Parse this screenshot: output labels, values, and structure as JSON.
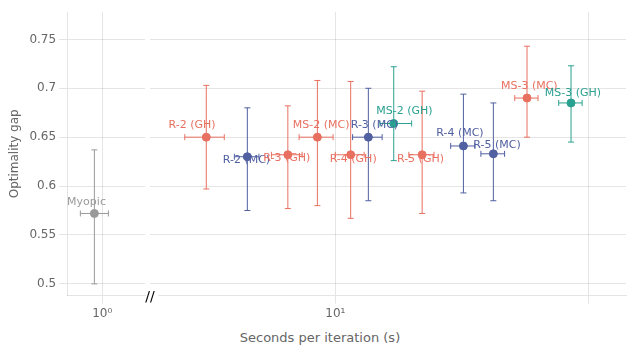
{
  "chart_data": [
    {
      "type": "scatter",
      "ylabel": "Optimality gap",
      "xlim": [
        0.55,
        1.55
      ],
      "xticks": [
        {
          "value": 1,
          "label": "10⁰"
        }
      ],
      "ylim": [
        0.488,
        0.778
      ],
      "yticks": [
        0.5,
        0.55,
        0.6,
        0.65,
        0.7,
        0.75
      ],
      "grid": true,
      "annotations": [
        "//"
      ],
      "series": [
        {
          "name": "Myopic",
          "color": "#9a9a9a",
          "x": [
            0.9
          ],
          "values": [
            0.572
          ],
          "xerr_minus": [
            0.18
          ],
          "xerr_plus": [
            0.18
          ],
          "yerr_minus": [
            0.072
          ],
          "yerr_plus": [
            0.065
          ],
          "label_x": 0.55,
          "label_y": 0.578
        }
      ]
    },
    {
      "type": "scatter",
      "xlabel": "Seconds per iteration (s)",
      "log": "x",
      "xlim": [
        2,
        140
      ],
      "xticks": [
        {
          "value": 10,
          "label": "10¹"
        },
        {
          "value": 100,
          "label": null
        }
      ],
      "ylim": [
        0.488,
        0.778
      ],
      "yticks": [
        0.5,
        0.55,
        0.6,
        0.65,
        0.7,
        0.75
      ],
      "tick_labels": "x",
      "grid": true,
      "series": [
        {
          "name": "R-2 (GH)",
          "color": "#e87060",
          "x": [
            3.1
          ],
          "values": [
            0.65
          ],
          "xerr_minus": [
            0.55
          ],
          "xerr_plus": [
            0.55
          ],
          "yerr_minus": [
            0.053
          ],
          "yerr_plus": [
            0.053
          ],
          "label_x": 2.2,
          "label_y": 0.657
        },
        {
          "name": "R-2 (MC)",
          "color": "#5060a0",
          "x": [
            4.5
          ],
          "values": [
            0.63
          ],
          "xerr_minus": [
            0.5
          ],
          "xerr_plus": [
            0.5
          ],
          "yerr_minus": [
            0.055
          ],
          "yerr_plus": [
            0.05
          ],
          "label_x": 3.6,
          "label_y": 0.621
        },
        {
          "name": "R-3 (GH)",
          "color": "#e87060",
          "x": [
            6.5
          ],
          "values": [
            0.632
          ],
          "xerr_minus": [
            0.9
          ],
          "xerr_plus": [
            0.9
          ],
          "yerr_minus": [
            0.055
          ],
          "yerr_plus": [
            0.05
          ],
          "label_x": 5.2,
          "label_y": 0.623
        },
        {
          "name": "MS-2 (MC)",
          "color": "#e87060",
          "x": [
            8.5
          ],
          "values": [
            0.65
          ],
          "xerr_minus": [
            1.3
          ],
          "xerr_plus": [
            1.3
          ],
          "yerr_minus": [
            0.07
          ],
          "yerr_plus": [
            0.058
          ],
          "label_x": 6.8,
          "label_y": 0.657
        },
        {
          "name": "R-4 (GH)",
          "color": "#e87060",
          "x": [
            11.5
          ],
          "values": [
            0.632
          ],
          "xerr_minus": [
            1.5
          ],
          "xerr_plus": [
            1.5
          ],
          "yerr_minus": [
            0.065
          ],
          "yerr_plus": [
            0.075
          ],
          "label_x": 9.5,
          "label_y": 0.622
        },
        {
          "name": "R-3 (MC)",
          "color": "#5060a0",
          "x": [
            13.5
          ],
          "values": [
            0.65
          ],
          "xerr_minus": [
            1.8
          ],
          "xerr_plus": [
            1.8
          ],
          "yerr_minus": [
            0.065
          ],
          "yerr_plus": [
            0.05
          ],
          "label_x": 11.5,
          "label_y": 0.657
        },
        {
          "name": "MS-2 (GH)",
          "color": "#2aa090",
          "x": [
            17.0
          ],
          "values": [
            0.664
          ],
          "xerr_minus": [
            2.0
          ],
          "xerr_plus": [
            3.0
          ],
          "yerr_minus": [
            0.038
          ],
          "yerr_plus": [
            0.058
          ],
          "label_x": 14.5,
          "label_y": 0.671
        },
        {
          "name": "R-5 (GH)",
          "color": "#e87060",
          "x": [
            22.0
          ],
          "values": [
            0.632
          ],
          "xerr_minus": [
            2.5
          ],
          "xerr_plus": [
            2.5
          ],
          "yerr_minus": [
            0.06
          ],
          "yerr_plus": [
            0.065
          ],
          "label_x": 17.5,
          "label_y": 0.622
        },
        {
          "name": "R-4 (MC)",
          "color": "#5060a0",
          "x": [
            32.0
          ],
          "values": [
            0.641
          ],
          "xerr_minus": [
            3.5
          ],
          "xerr_plus": [
            3.5
          ],
          "yerr_minus": [
            0.048
          ],
          "yerr_plus": [
            0.053
          ],
          "label_x": 25.0,
          "label_y": 0.648
        },
        {
          "name": "R-5 (MC)",
          "color": "#5060a0",
          "x": [
            42.0
          ],
          "values": [
            0.633
          ],
          "xerr_minus": [
            4.5
          ],
          "xerr_plus": [
            4.5
          ],
          "yerr_minus": [
            0.048
          ],
          "yerr_plus": [
            0.052
          ],
          "label_x": 35.0,
          "label_y": 0.636
        },
        {
          "name": "MS-3 (MC)",
          "color": "#e87060",
          "x": [
            57.0
          ],
          "values": [
            0.69
          ],
          "xerr_minus": [
            6.0
          ],
          "xerr_plus": [
            6.0
          ],
          "yerr_minus": [
            0.04
          ],
          "yerr_plus": [
            0.053
          ],
          "label_x": 45.0,
          "label_y": 0.697
        },
        {
          "name": "MS-3 (GH)",
          "color": "#2aa090",
          "x": [
            85.0
          ],
          "values": [
            0.685
          ],
          "xerr_minus": [
            9.0
          ],
          "xerr_plus": [
            9.0
          ],
          "yerr_minus": [
            0.04
          ],
          "yerr_plus": [
            0.038
          ],
          "label_x": 67.0,
          "label_y": 0.689
        }
      ]
    }
  ]
}
